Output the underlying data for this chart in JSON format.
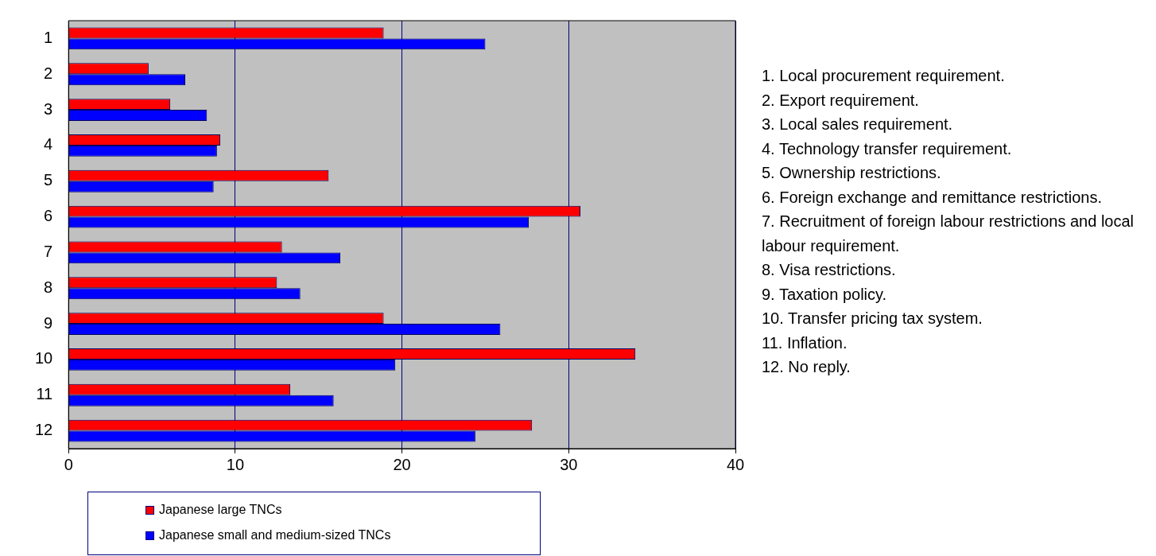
{
  "chart_data": {
    "type": "bar",
    "orientation": "horizontal",
    "categories": [
      "1",
      "2",
      "3",
      "4",
      "5",
      "6",
      "7",
      "8",
      "9",
      "10",
      "11",
      "12"
    ],
    "series": [
      {
        "name": "Japanese large TNCs",
        "color": "#ff0000",
        "values": [
          18.9,
          4.8,
          6.1,
          9.1,
          15.6,
          30.7,
          12.8,
          12.5,
          18.9,
          34.0,
          13.3,
          27.8
        ]
      },
      {
        "name": "Japanese small and medium-sized TNCs",
        "color": "#0000ff",
        "values": [
          25.0,
          7.0,
          8.3,
          8.9,
          8.7,
          27.6,
          16.3,
          13.9,
          25.9,
          19.6,
          15.9,
          24.4
        ]
      }
    ],
    "xlim": [
      0,
      40
    ],
    "xticks": [
      0,
      10,
      20,
      30,
      40
    ],
    "grid": "x",
    "legend": "bottom",
    "annotations": [
      "1. Local procurement requirement.",
      "2. Export requirement.",
      "3. Local sales requirement.",
      "4. Technology transfer requirement.",
      "5. Ownership restrictions.",
      "6. Foreign exchange and remittance restrictions.",
      "7. Recruitment of foreign labour restrictions and local labour requirement.",
      "8. Visa restrictions.",
      "9. Taxation policy.",
      "10. Transfer pricing tax system.",
      "11. Inflation.",
      "12. No reply."
    ]
  }
}
